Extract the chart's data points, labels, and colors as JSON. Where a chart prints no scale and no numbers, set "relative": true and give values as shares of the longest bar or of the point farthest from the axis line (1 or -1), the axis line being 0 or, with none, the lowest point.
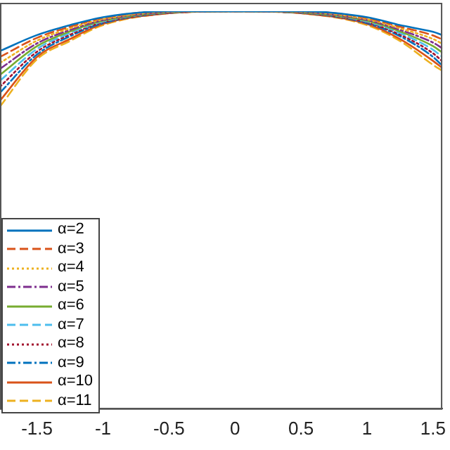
{
  "chart_data": {
    "type": "line",
    "relative": true,
    "x": [
      -1.78,
      -1.5,
      -1.25,
      -1,
      -0.5,
      0,
      0.5,
      1,
      1.25,
      1.5,
      1.57
    ],
    "xlim": [
      -1.78,
      1.57
    ],
    "xticks": [
      -1.5,
      -1,
      -0.5,
      0,
      0.5,
      1,
      1.5
    ],
    "tick_labels": "x",
    "legend": "bottom left",
    "grid": false,
    "marker": "none",
    "series": [
      {
        "name": "α=2",
        "color": "#0072bd",
        "line_style": "solid",
        "values": [
          0.9,
          0.94,
          0.965,
          0.985,
          1,
          1,
          1,
          0.985,
          0.965,
          0.948,
          0.94
        ]
      },
      {
        "name": "α=3",
        "color": "#d95319",
        "line_style": "dashed",
        "values": [
          0.885,
          0.933,
          0.961,
          0.983,
          1,
          1,
          1,
          0.983,
          0.961,
          0.939,
          0.929
        ]
      },
      {
        "name": "α=4",
        "color": "#edb120",
        "line_style": "dotted",
        "values": [
          0.87,
          0.926,
          0.957,
          0.98,
          0.999,
          1,
          0.999,
          0.98,
          0.957,
          0.93,
          0.918
        ]
      },
      {
        "name": "α=5",
        "color": "#7e2f8e",
        "line_style": "dashdot",
        "values": [
          0.855,
          0.919,
          0.953,
          0.978,
          0.998,
          1,
          0.998,
          0.978,
          0.953,
          0.921,
          0.907
        ]
      },
      {
        "name": "α=6",
        "color": "#77ac30",
        "line_style": "solid",
        "values": [
          0.84,
          0.912,
          0.949,
          0.976,
          0.997,
          1,
          0.997,
          0.976,
          0.949,
          0.912,
          0.896
        ]
      },
      {
        "name": "α=7",
        "color": "#4dbeee",
        "line_style": "dashed",
        "values": [
          0.825,
          0.905,
          0.945,
          0.974,
          0.997,
          1,
          0.997,
          0.974,
          0.945,
          0.903,
          0.885
        ]
      },
      {
        "name": "α=8",
        "color": "#a2142f",
        "line_style": "dotted",
        "values": [
          0.81,
          0.898,
          0.941,
          0.972,
          0.996,
          1,
          0.996,
          0.972,
          0.941,
          0.894,
          0.874
        ]
      },
      {
        "name": "α=9",
        "color": "#0072bd",
        "line_style": "dashdot",
        "values": [
          0.795,
          0.891,
          0.937,
          0.97,
          0.996,
          1,
          0.996,
          0.97,
          0.937,
          0.885,
          0.863
        ]
      },
      {
        "name": "α=10",
        "color": "#d95319",
        "line_style": "solid",
        "values": [
          0.775,
          0.885,
          0.93,
          0.968,
          0.995,
          1,
          0.995,
          0.968,
          0.93,
          0.875,
          0.857
        ]
      },
      {
        "name": "α=11",
        "color": "#edb120",
        "line_style": "dashed",
        "values": [
          0.76,
          0.879,
          0.925,
          0.965,
          0.995,
          1,
          0.995,
          0.965,
          0.925,
          0.865,
          0.85
        ]
      }
    ]
  }
}
